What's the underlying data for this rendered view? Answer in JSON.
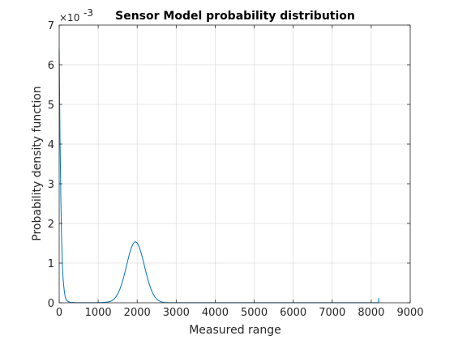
{
  "chart_data": {
    "type": "line",
    "title": "Sensor Model probability distribution",
    "xlabel": "Measured range",
    "ylabel": "Probability density function",
    "xlim": [
      0,
      9000
    ],
    "ylim": [
      0,
      0.007
    ],
    "xticks": [
      0,
      1000,
      2000,
      3000,
      4000,
      5000,
      6000,
      7000,
      8000,
      9000
    ],
    "yticks": [
      0,
      0.001,
      0.002,
      0.003,
      0.004,
      0.005,
      0.006,
      0.007
    ],
    "ytick_labels": [
      "0",
      "1",
      "2",
      "3",
      "4",
      "5",
      "6",
      "7"
    ],
    "y_exponent_label": "×10",
    "y_exponent_power": "-3",
    "grid": true,
    "line_color": "#0072bd",
    "series": [
      {
        "x": [
          0,
          10,
          20,
          30,
          40,
          50,
          60,
          80,
          100,
          130,
          160,
          200,
          250,
          300,
          400,
          500,
          600,
          700,
          800,
          900,
          1000,
          1100,
          1200,
          1300,
          1350,
          1400,
          1450,
          1500,
          1550,
          1600,
          1650,
          1700,
          1750,
          1800,
          1850,
          1900,
          1950,
          2000,
          2050,
          2100,
          2150,
          2200,
          2250,
          2300,
          2350,
          2400,
          2450,
          2500,
          2550,
          2600,
          2650,
          2700,
          2750,
          2800,
          2900,
          3000,
          4000,
          5000,
          6000,
          7000,
          8000,
          8189,
          8190,
          8191,
          8192,
          8193
        ],
        "y": [
          0.0064,
          0.0053,
          0.0043,
          0.0035,
          0.0028,
          0.0022,
          0.0017,
          0.001,
          0.0006,
          0.0003,
          0.00012,
          5e-05,
          2e-05,
          1e-05,
          5e-06,
          3e-06,
          3e-06,
          3e-06,
          3e-06,
          3e-06,
          4e-06,
          7e-06,
          1.4e-05,
          3e-05,
          5.2e-05,
          8.7e-05,
          0.00014,
          0.000218,
          0.000325,
          0.000464,
          0.000634,
          0.000827,
          0.001031,
          0.001225,
          0.001388,
          0.001497,
          0.001539,
          0.00151,
          0.001413,
          0.001261,
          0.001073,
          0.000871,
          0.000675,
          0.000499,
          0.000352,
          0.000237,
          0.000152,
          9.3e-05,
          5.4e-05,
          3e-05,
          1.6e-05,
          8e-06,
          5e-06,
          3e-06,
          3e-06,
          3e-06,
          3e-06,
          3e-06,
          3e-06,
          3e-06,
          3e-06,
          3e-06,
          0.00011,
          0.00011,
          0.00011,
          3e-06
        ]
      }
    ]
  }
}
